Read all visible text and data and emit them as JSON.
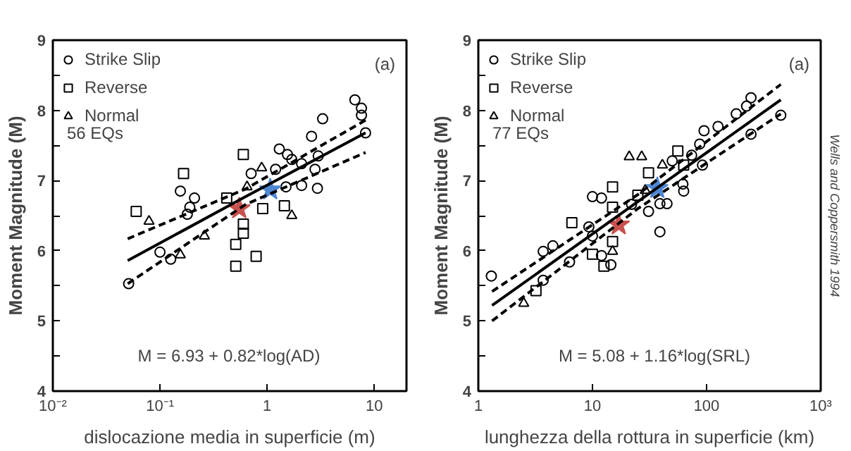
{
  "chart_data": [
    {
      "type": "scatter",
      "xlabel": "dislocazione media in superficie (m)",
      "ylabel": "Moment Magnitude (M)",
      "log": "x",
      "xlim": [
        0.01,
        20
      ],
      "ylim": [
        4,
        9
      ],
      "xticks": [
        {
          "value": 0.01,
          "label": "10⁻²"
        },
        {
          "value": 0.1,
          "label": "10⁻¹"
        },
        1,
        10
      ],
      "yticks": [
        4,
        {
          "value": 4.5,
          "label": null
        },
        5,
        {
          "value": 5.5,
          "label": null
        },
        6,
        {
          "value": 6.5,
          "label": null
        },
        7,
        {
          "value": 7.5,
          "label": null
        },
        8,
        {
          "value": 8.5,
          "label": null
        },
        9
      ],
      "grid": false,
      "legend": "top left",
      "annotations": [
        "56 EQs",
        "(a)",
        "M = 6.93 + 0.82*log(AD)"
      ],
      "series": [
        {
          "name": "Strike Slip",
          "color": "#000000",
          "marker": "circle",
          "x": [
            6.6,
            7.6,
            7.6,
            3.3,
            8.3,
            2.6,
            1.3,
            1.55,
            1.7,
            2.1,
            3.0,
            2.8,
            1.2,
            0.71,
            2.1,
            2.95,
            1.5,
            0.155,
            0.21,
            0.19,
            0.18,
            0.1,
            0.126,
            0.051
          ],
          "values": [
            8.15,
            8.03,
            7.93,
            7.88,
            7.68,
            7.63,
            7.45,
            7.37,
            7.3,
            7.24,
            7.35,
            7.16,
            7.16,
            7.1,
            6.93,
            6.89,
            6.91,
            6.85,
            6.75,
            6.62,
            6.52,
            5.98,
            5.88,
            5.53
          ]
        },
        {
          "name": "Reverse",
          "color": "#000000",
          "marker": "square",
          "x": [
            0.6,
            0.166,
            0.42,
            0.91,
            1.45,
            0.06,
            0.6,
            0.51,
            0.79,
            0.51,
            0.6
          ],
          "values": [
            7.37,
            7.1,
            6.75,
            6.6,
            6.64,
            6.56,
            6.38,
            6.09,
            5.92,
            5.78,
            6.25
          ]
        },
        {
          "name": "Normal",
          "color": "#000000",
          "marker": "triangle",
          "x": [
            0.89,
            0.65,
            0.079,
            1.7,
            0.155,
            0.26
          ],
          "values": [
            7.18,
            6.91,
            6.42,
            6.5,
            5.94,
            6.21
          ]
        },
        {
          "color": "#c9514f",
          "marker": "star",
          "x": [
            0.55
          ],
          "values": [
            6.6
          ]
        },
        {
          "color": "#4f86d4",
          "marker": "star",
          "x": [
            1.07
          ],
          "values": [
            6.87
          ]
        },
        {
          "type": "line",
          "color": "#000000",
          "line_style": "solid",
          "marker": "none",
          "x": [
            0.05,
            0.63,
            8.3
          ],
          "values": [
            5.86,
            6.77,
            7.68
          ]
        },
        {
          "type": "line",
          "color": "#000000",
          "line_style": "dashed",
          "marker": "none",
          "x": [
            0.05,
            0.63,
            8.3
          ],
          "values": [
            6.17,
            6.88,
            7.86
          ]
        },
        {
          "type": "line",
          "color": "#000000",
          "line_style": "dashed",
          "marker": "none",
          "x": [
            0.05,
            0.63,
            8.3
          ],
          "values": [
            5.53,
            6.66,
            7.4
          ]
        }
      ]
    },
    {
      "type": "scatter",
      "xlabel": "lunghezza della rottura in superficie (km)",
      "ylabel": "Moment Magnitude (M)",
      "log": "x",
      "xlim": [
        1,
        1000
      ],
      "ylim": [
        4,
        9
      ],
      "xticks": [
        1,
        10,
        100,
        {
          "value": 1000,
          "label": "10³"
        }
      ],
      "yticks": [
        4,
        {
          "value": 4.5,
          "label": null
        },
        5,
        {
          "value": 5.5,
          "label": null
        },
        6,
        {
          "value": 6.5,
          "label": null
        },
        7,
        {
          "value": 7.5,
          "label": null
        },
        8,
        {
          "value": 8.5,
          "label": null
        },
        9
      ],
      "grid": false,
      "legend": "top left",
      "annotations": [
        "77 EQs",
        "(a)",
        "M = 5.08 + 1.16*log(SRL)",
        "Wells and Coppersmith 1994"
      ],
      "series": [
        {
          "name": "Strike Slip",
          "color": "#000000",
          "marker": "circle",
          "x": [
            245,
            224,
            182,
            447,
            126,
            95,
            245,
            87,
            74,
            50,
            92,
            62,
            63,
            10,
            12,
            39,
            45,
            31,
            22,
            1.3,
            3.7,
            3.7,
            4.5,
            6.3,
            9.3,
            10,
            12,
            14.5,
            39
          ],
          "values": [
            8.18,
            8.06,
            7.95,
            7.93,
            7.77,
            7.71,
            7.66,
            7.52,
            7.36,
            7.28,
            7.22,
            6.95,
            6.85,
            6.77,
            6.75,
            6.67,
            6.67,
            6.56,
            6.66,
            5.64,
            5.58,
            5.99,
            6.07,
            5.84,
            6.34,
            6.21,
            5.93,
            5.8,
            6.27
          ]
        },
        {
          "name": "Reverse",
          "color": "#000000",
          "marker": "square",
          "x": [
            56,
            31,
            15,
            25,
            15,
            6.6,
            63,
            3.2,
            10,
            12.6,
            15
          ],
          "values": [
            7.42,
            7.11,
            6.91,
            6.79,
            6.62,
            6.4,
            7.22,
            5.43,
            5.95,
            5.78,
            6.13
          ]
        },
        {
          "name": "Normal",
          "color": "#000000",
          "marker": "triangle",
          "x": [
            21,
            27,
            41,
            29,
            2.5,
            15
          ],
          "values": [
            7.34,
            7.34,
            7.22,
            6.86,
            5.25,
            5.99
          ]
        },
        {
          "color": "#c9514f",
          "marker": "star",
          "x": [
            17
          ],
          "values": [
            6.37
          ]
        },
        {
          "color": "#4f86d4",
          "marker": "star",
          "x": [
            37
          ],
          "values": [
            6.89
          ]
        },
        {
          "type": "line",
          "color": "#000000",
          "line_style": "solid",
          "marker": "none",
          "x": [
            1.32,
            25,
            447
          ],
          "values": [
            5.22,
            6.7,
            8.15
          ]
        },
        {
          "type": "line",
          "color": "#000000",
          "line_style": "dashed",
          "marker": "none",
          "x": [
            1.32,
            25,
            447
          ],
          "values": [
            5.42,
            6.8,
            8.37
          ]
        },
        {
          "type": "line",
          "color": "#000000",
          "line_style": "dashed",
          "marker": "none",
          "x": [
            1.32,
            25,
            447
          ],
          "values": [
            5.0,
            6.6,
            7.95
          ]
        }
      ]
    }
  ]
}
